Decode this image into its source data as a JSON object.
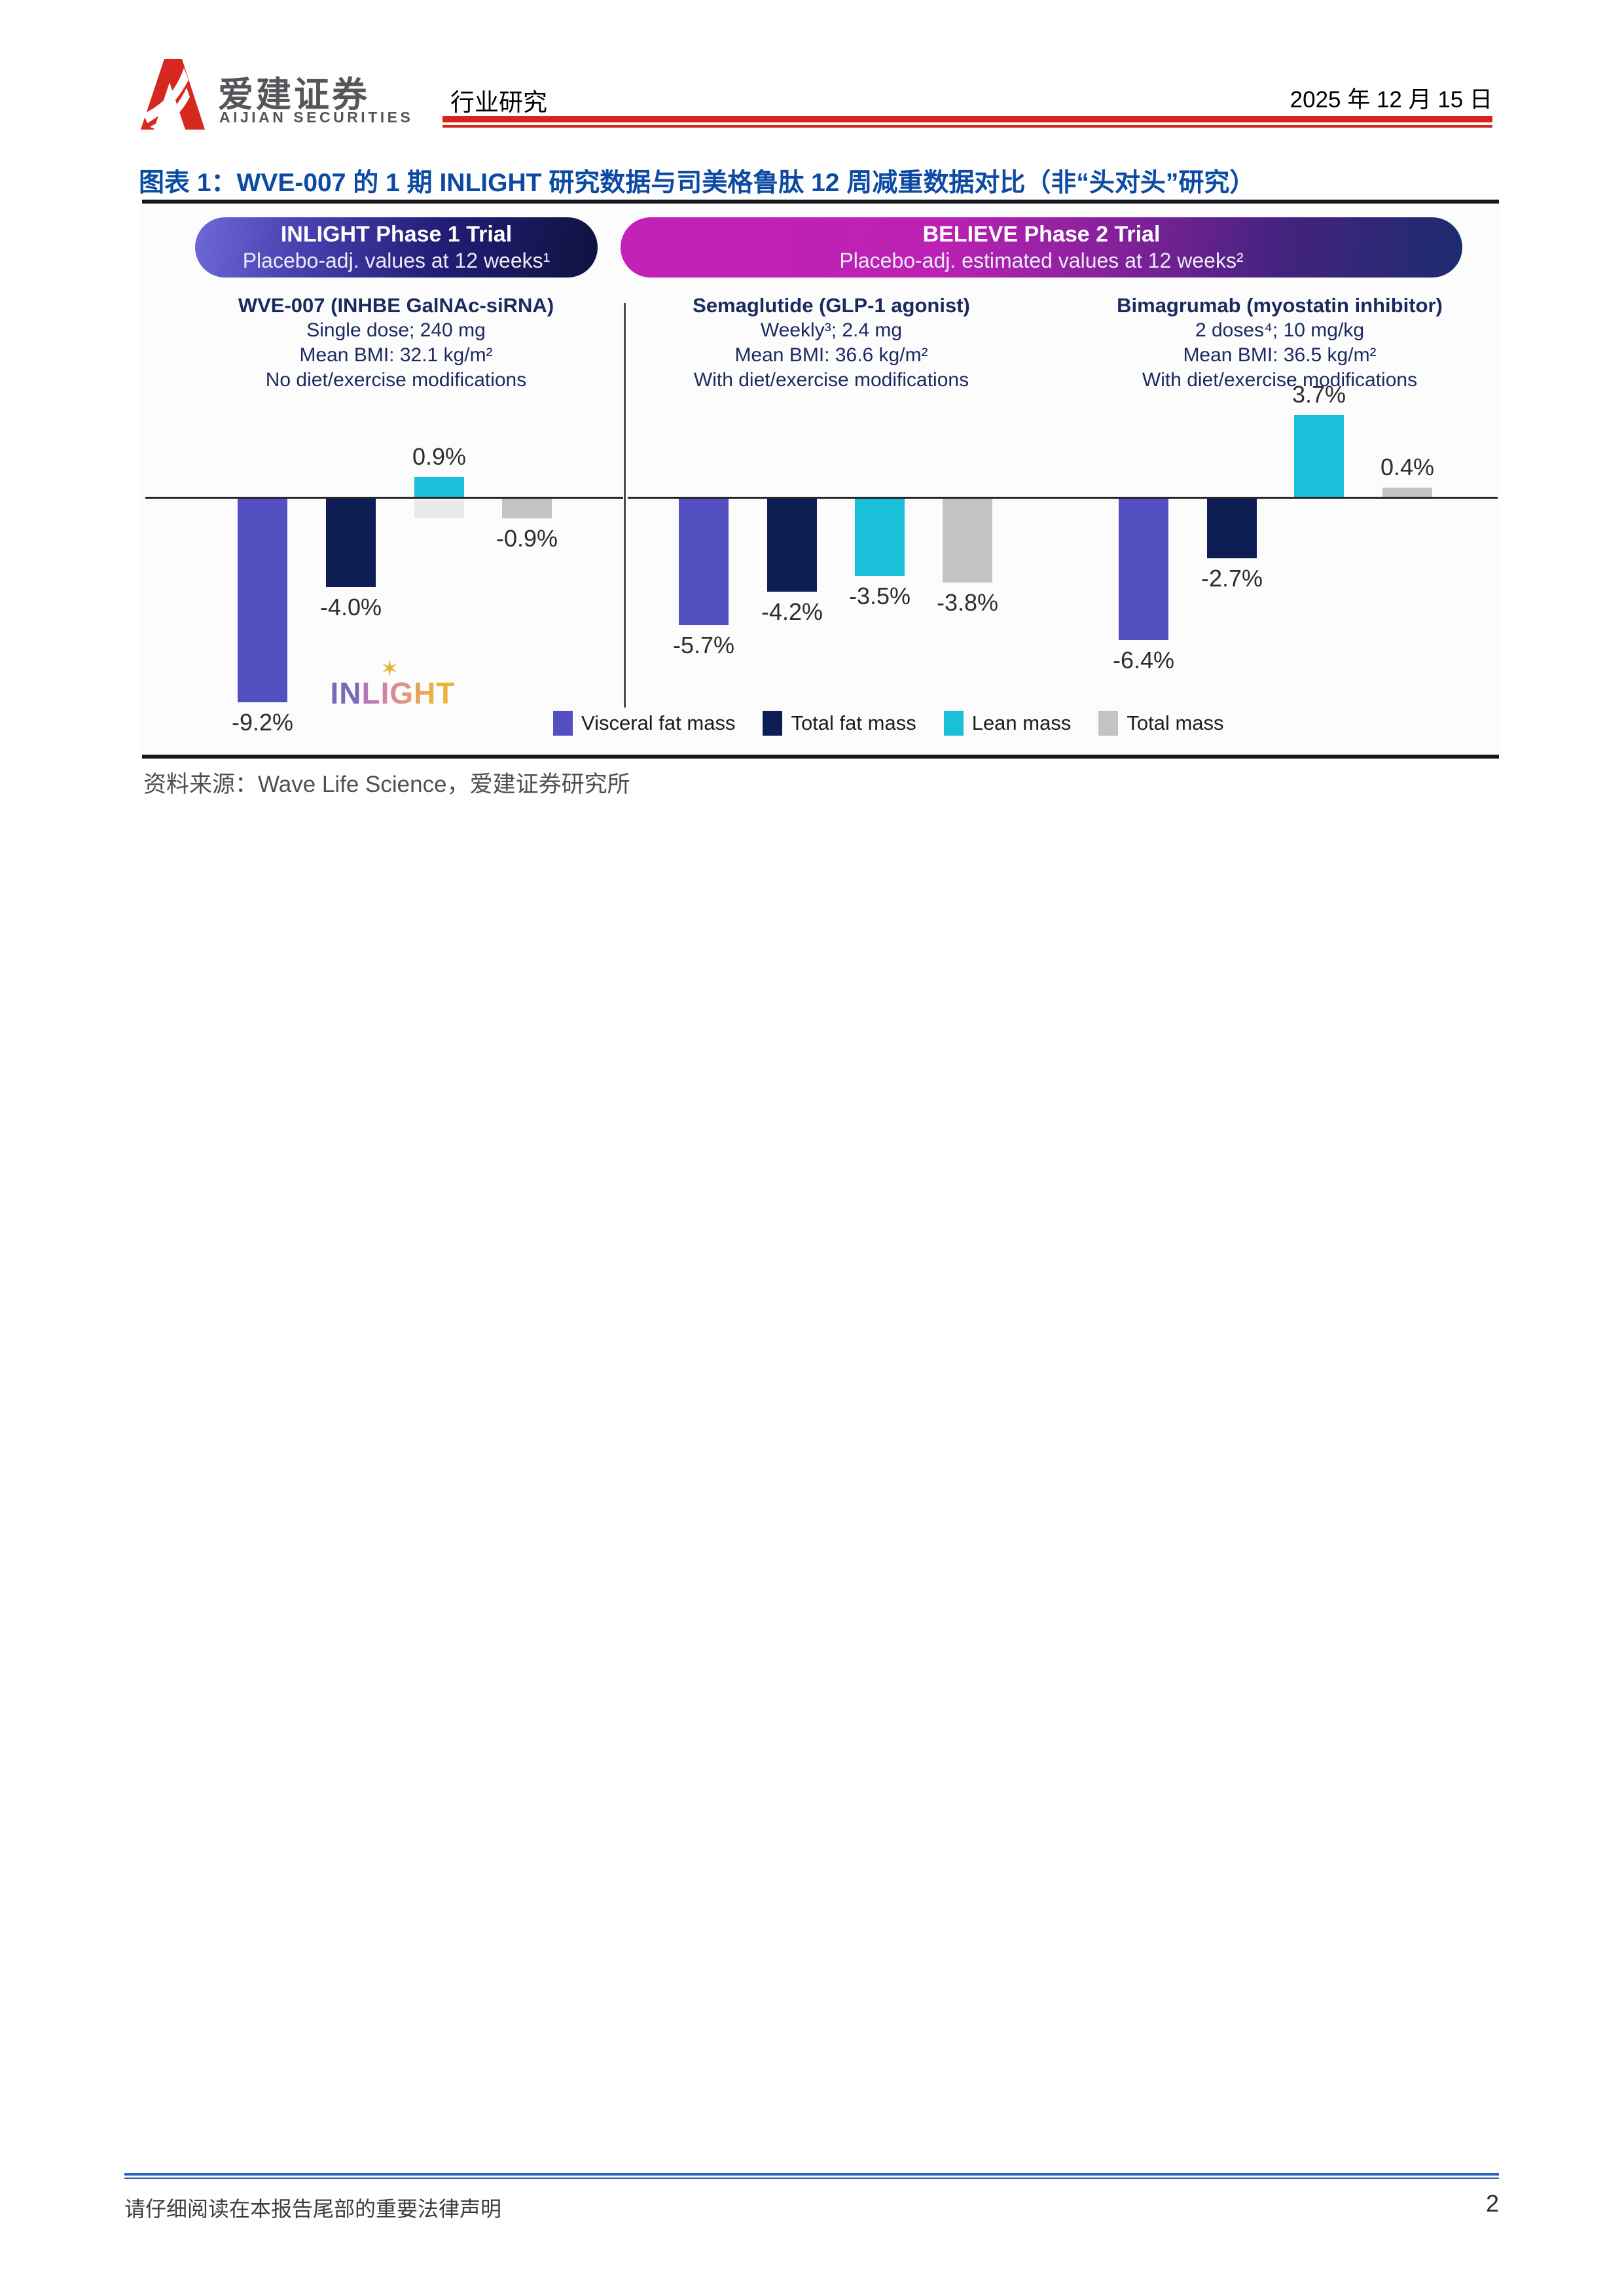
{
  "header": {
    "brand_cn": "爱建证券",
    "brand_en": "AIJIAN SECURITIES",
    "section": "行业研究",
    "date": "2025 年 12 月 15 日"
  },
  "figure": {
    "title": "图表 1：WVE-007 的 1 期 INLIGHT 研究数据与司美格鲁肽 12 周减重数据对比（非“头对头”研究）",
    "source": "资料来源：Wave Life Science，爱建证券研究所"
  },
  "chart_data": {
    "type": "bar",
    "title": "WVE-007 的 1 期 INLIGHT 研究数据与司美格鲁肽 12 周减重数据对比（非“头对头”研究）",
    "unit": "%",
    "ylim": [
      -10,
      4.5
    ],
    "grid": false,
    "legend_position": "bottom",
    "banners": [
      {
        "line1": "INLIGHT Phase 1 Trial",
        "line2": "Placebo-adj. values at 12 weeks¹"
      },
      {
        "line1": "BELIEVE Phase 2 Trial",
        "line2": "Placebo-adj. estimated values at 12 weeks²"
      }
    ],
    "columns": [
      {
        "title": "WVE-007 (INHBE GalNAc-siRNA)",
        "line1": "Single dose; 240 mg",
        "line2": "Mean BMI: 32.1 kg/m²",
        "line3": "No diet/exercise modifications"
      },
      {
        "title": "Semaglutide (GLP-1 agonist)",
        "line1": "Weekly³; 2.4 mg",
        "line2": "Mean BMI: 36.6 kg/m²",
        "line3": "With diet/exercise modifications"
      },
      {
        "title": "Bimagrumab (myostatin inhibitor)",
        "line1": "2 doses⁴; 10 mg/kg",
        "line2": "Mean BMI: 36.5 kg/m²",
        "line3": "With diet/exercise modifications"
      }
    ],
    "series": [
      {
        "name": "Visceral fat mass",
        "color": "#524fc0"
      },
      {
        "name": "Total fat mass",
        "color": "#0e1e55"
      },
      {
        "name": "Lean mass",
        "color": "#1abfd9"
      },
      {
        "name": "Total mass",
        "color": "#c3c3c5"
      }
    ],
    "groups": [
      {
        "drug": "WVE-007",
        "values": [
          -9.2,
          -4.0,
          0.9,
          -0.9
        ],
        "labels": [
          "-9.2%",
          "-4.0%",
          "0.9%",
          "-0.9%"
        ]
      },
      {
        "drug": "Semaglutide",
        "values": [
          -5.7,
          -4.2,
          -3.5,
          -3.8
        ],
        "labels": [
          "-5.7%",
          "-4.2%",
          "-3.5%",
          "-3.8%"
        ]
      },
      {
        "drug": "Bimagrumab",
        "values": [
          -6.4,
          -2.7,
          3.7,
          0.4
        ],
        "labels": [
          "-6.4%",
          "-2.7%",
          "3.7%",
          "0.4%"
        ]
      }
    ],
    "inlight_wordmark": {
      "in": "IN",
      "light": "LIGHT",
      "star": "✶"
    }
  },
  "footer": {
    "disclaimer": "请仔细阅读在本报告尾部的重要法律声明",
    "page": "2"
  }
}
